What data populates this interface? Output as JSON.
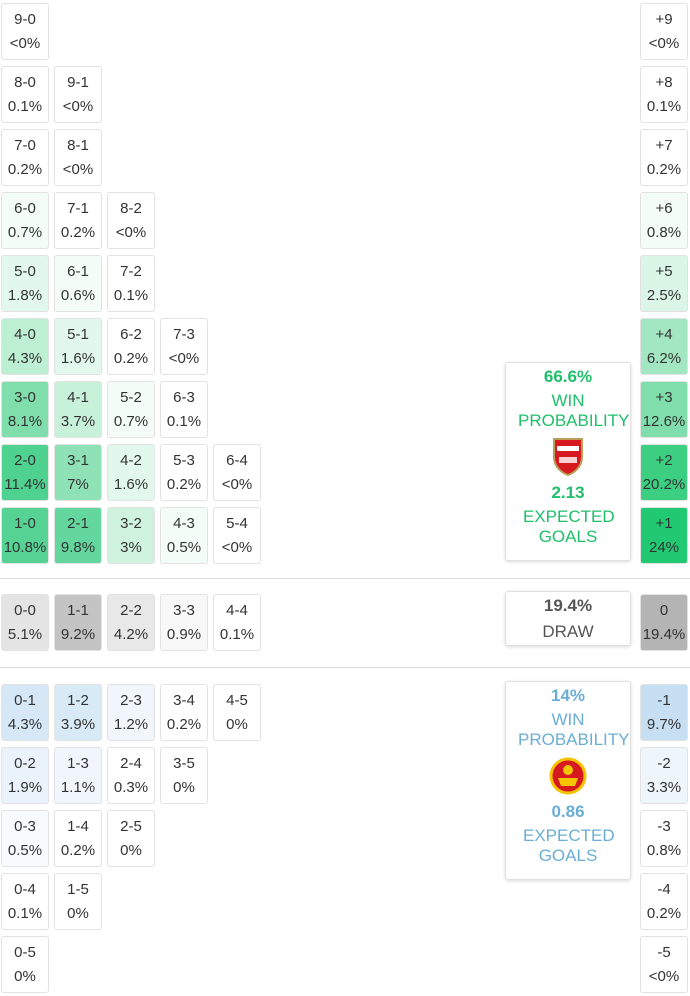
{
  "home_rows": [
    [
      {
        "score": "9-0",
        "prob": "<0%",
        "color": "#ffffff"
      }
    ],
    [
      {
        "score": "8-0",
        "prob": "0.1%",
        "color": "#ffffff"
      },
      {
        "score": "9-1",
        "prob": "<0%",
        "color": "#ffffff"
      }
    ],
    [
      {
        "score": "7-0",
        "prob": "0.2%",
        "color": "#ffffff"
      },
      {
        "score": "8-1",
        "prob": "<0%",
        "color": "#ffffff"
      }
    ],
    [
      {
        "score": "6-0",
        "prob": "0.7%",
        "color": "#f3fcf7"
      },
      {
        "score": "7-1",
        "prob": "0.2%",
        "color": "#ffffff"
      },
      {
        "score": "8-2",
        "prob": "<0%",
        "color": "#ffffff"
      }
    ],
    [
      {
        "score": "5-0",
        "prob": "1.8%",
        "color": "#e3f8ec"
      },
      {
        "score": "6-1",
        "prob": "0.6%",
        "color": "#f3fcf7"
      },
      {
        "score": "7-2",
        "prob": "0.1%",
        "color": "#ffffff"
      }
    ],
    [
      {
        "score": "4-0",
        "prob": "4.3%",
        "color": "#bdefd3"
      },
      {
        "score": "5-1",
        "prob": "1.6%",
        "color": "#e3f8ec"
      },
      {
        "score": "6-2",
        "prob": "0.2%",
        "color": "#ffffff"
      },
      {
        "score": "7-3",
        "prob": "<0%",
        "color": "#ffffff"
      }
    ],
    [
      {
        "score": "3-0",
        "prob": "8.1%",
        "color": "#7fdeac"
      },
      {
        "score": "4-1",
        "prob": "3.7%",
        "color": "#c8f1da"
      },
      {
        "score": "5-2",
        "prob": "0.7%",
        "color": "#f3fcf7"
      },
      {
        "score": "6-3",
        "prob": "0.1%",
        "color": "#ffffff"
      }
    ],
    [
      {
        "score": "2-0",
        "prob": "11.4%",
        "color": "#4fd18f"
      },
      {
        "score": "3-1",
        "prob": "7%",
        "color": "#8fe2b6"
      },
      {
        "score": "4-2",
        "prob": "1.6%",
        "color": "#e3f8ec"
      },
      {
        "score": "5-3",
        "prob": "0.2%",
        "color": "#ffffff"
      },
      {
        "score": "6-4",
        "prob": "<0%",
        "color": "#ffffff"
      }
    ],
    [
      {
        "score": "1-0",
        "prob": "10.8%",
        "color": "#56d394"
      },
      {
        "score": "2-1",
        "prob": "9.8%",
        "color": "#64d79e"
      },
      {
        "score": "3-2",
        "prob": "3%",
        "color": "#d0f3df"
      },
      {
        "score": "4-3",
        "prob": "0.5%",
        "color": "#f3fcf7"
      },
      {
        "score": "5-4",
        "prob": "<0%",
        "color": "#ffffff"
      }
    ]
  ],
  "draw_row": [
    {
      "score": "0-0",
      "prob": "5.1%",
      "color": "#e4e4e4"
    },
    {
      "score": "1-1",
      "prob": "9.2%",
      "color": "#c4c4c4"
    },
    {
      "score": "2-2",
      "prob": "4.2%",
      "color": "#e8e8e8"
    },
    {
      "score": "3-3",
      "prob": "0.9%",
      "color": "#f8f8f8"
    },
    {
      "score": "4-4",
      "prob": "0.1%",
      "color": "#ffffff"
    }
  ],
  "away_rows": [
    [
      {
        "score": "0-1",
        "prob": "4.3%",
        "color": "#d6e8f6"
      },
      {
        "score": "1-2",
        "prob": "3.9%",
        "color": "#d9eaf7"
      },
      {
        "score": "2-3",
        "prob": "1.2%",
        "color": "#f0f6fc"
      },
      {
        "score": "3-4",
        "prob": "0.2%",
        "color": "#ffffff"
      },
      {
        "score": "4-5",
        "prob": "0%",
        "color": "#ffffff"
      }
    ],
    [
      {
        "score": "0-2",
        "prob": "1.9%",
        "color": "#eaf3fb"
      },
      {
        "score": "1-3",
        "prob": "1.1%",
        "color": "#f0f6fc"
      },
      {
        "score": "2-4",
        "prob": "0.3%",
        "color": "#ffffff"
      },
      {
        "score": "3-5",
        "prob": "0%",
        "color": "#ffffff"
      }
    ],
    [
      {
        "score": "0-3",
        "prob": "0.5%",
        "color": "#f8fbfe"
      },
      {
        "score": "1-4",
        "prob": "0.2%",
        "color": "#ffffff"
      },
      {
        "score": "2-5",
        "prob": "0%",
        "color": "#ffffff"
      }
    ],
    [
      {
        "score": "0-4",
        "prob": "0.1%",
        "color": "#ffffff"
      },
      {
        "score": "1-5",
        "prob": "0%",
        "color": "#ffffff"
      }
    ],
    [
      {
        "score": "0-5",
        "prob": "0%",
        "color": "#ffffff"
      }
    ]
  ],
  "margins": [
    {
      "label": "+9",
      "prob": "<0%",
      "color": "#ffffff"
    },
    {
      "label": "+8",
      "prob": "0.1%",
      "color": "#ffffff"
    },
    {
      "label": "+7",
      "prob": "0.2%",
      "color": "#ffffff"
    },
    {
      "label": "+6",
      "prob": "0.8%",
      "color": "#f3fcf7"
    },
    {
      "label": "+5",
      "prob": "2.5%",
      "color": "#dbf6e7"
    },
    {
      "label": "+4",
      "prob": "6.2%",
      "color": "#a2e7c2"
    },
    {
      "label": "+3",
      "prob": "12.6%",
      "color": "#7fdeac"
    },
    {
      "label": "+2",
      "prob": "20.2%",
      "color": "#3ccf82"
    },
    {
      "label": "+1",
      "prob": "24%",
      "color": "#22c973"
    },
    {
      "label": "0",
      "prob": "19.4%",
      "color": "#b4b4b4"
    },
    {
      "label": "-1",
      "prob": "9.7%",
      "color": "#c7dff2"
    },
    {
      "label": "-2",
      "prob": "3.3%",
      "color": "#eef5fb"
    },
    {
      "label": "-3",
      "prob": "0.8%",
      "color": "#ffffff"
    },
    {
      "label": "-4",
      "prob": "0.2%",
      "color": "#ffffff"
    },
    {
      "label": "-5",
      "prob": "<0%",
      "color": "#ffffff"
    }
  ],
  "home_summary": {
    "win_prob": "66.6%",
    "win_label": "WIN PROBABILITY",
    "xg": "2.13",
    "xg_label": "EXPECTED GOALS"
  },
  "draw_summary": {
    "prob": "19.4%",
    "label": "DRAW"
  },
  "away_summary": {
    "win_prob": "14%",
    "win_label": "WIN PROBABILITY",
    "xg": "0.86",
    "xg_label": "EXPECTED GOALS"
  }
}
